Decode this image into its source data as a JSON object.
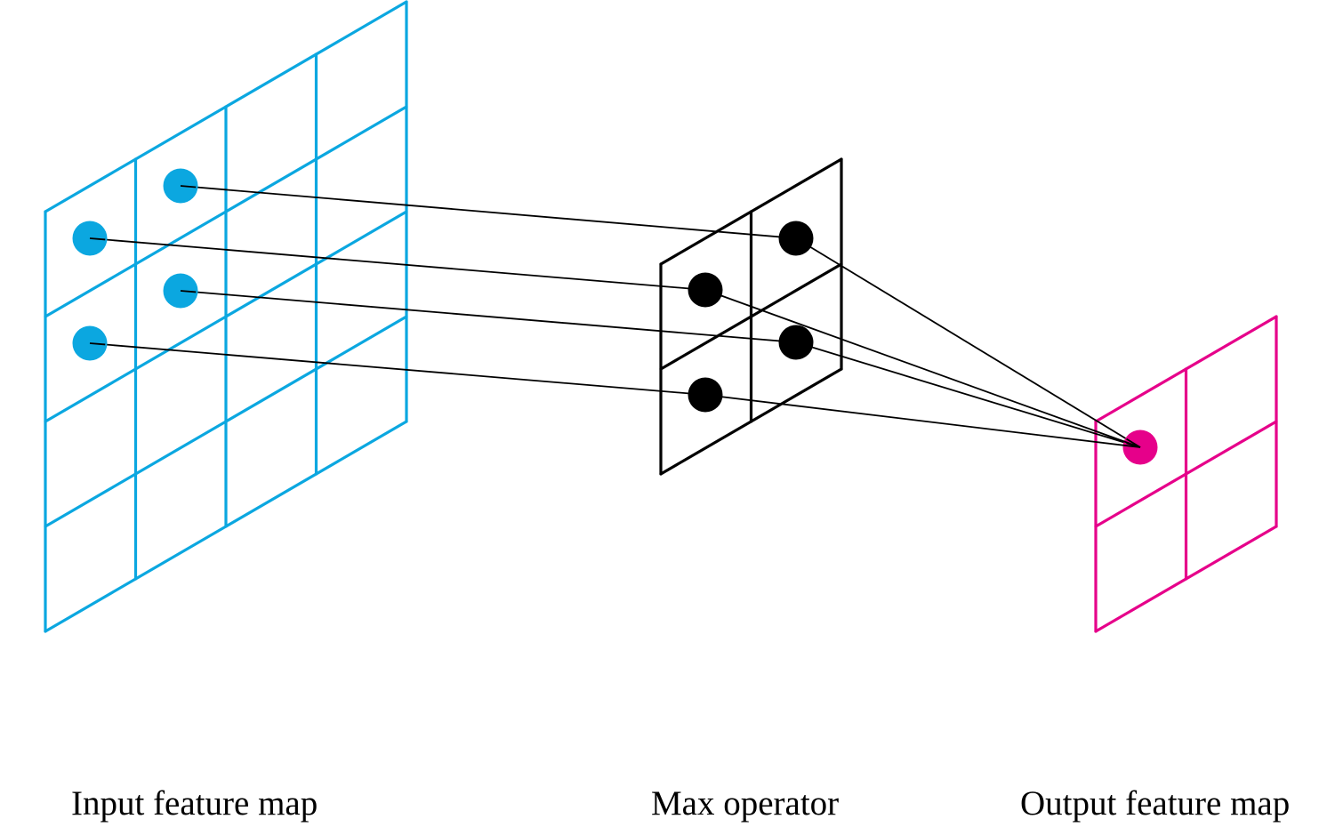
{
  "captions": {
    "input": "Input feature map",
    "operator": "Max operator",
    "output": "Output feature map"
  },
  "colors": {
    "input": "#0BA7E0",
    "operator": "#000000",
    "output": "#E6008A",
    "connector": "#000000"
  },
  "grids": {
    "input": {
      "cols": 4,
      "rows": 4
    },
    "operator": {
      "cols": 2,
      "rows": 2
    },
    "output": {
      "cols": 2,
      "rows": 2
    }
  }
}
